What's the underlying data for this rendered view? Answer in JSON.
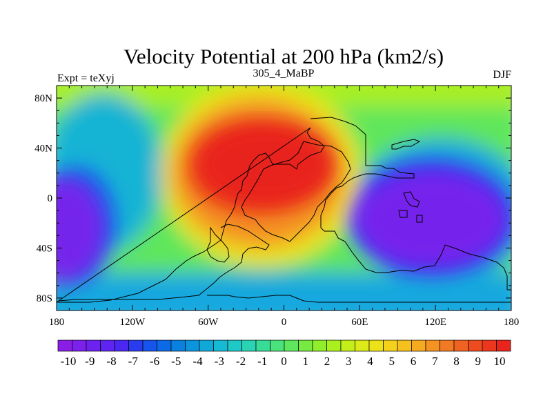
{
  "chart_data": {
    "type": "heatmap",
    "title": "Velocity Potential at 200 hPa (km2/s)",
    "left_label": "Expt = teXyj",
    "center_label": "305_4_MaBP",
    "right_label": "DJF",
    "xlim": [
      -180,
      180
    ],
    "ylim": [
      -90,
      90
    ],
    "x_ticks": [
      {
        "value": -180,
        "label": "180"
      },
      {
        "value": -120,
        "label": "120W"
      },
      {
        "value": -60,
        "label": "60W"
      },
      {
        "value": 0,
        "label": "0"
      },
      {
        "value": 60,
        "label": "60E"
      },
      {
        "value": 120,
        "label": "120E"
      },
      {
        "value": 180,
        "label": "180"
      }
    ],
    "y_ticks": [
      {
        "value": 80,
        "label": "80N"
      },
      {
        "value": 40,
        "label": "40N"
      },
      {
        "value": 0,
        "label": "0"
      },
      {
        "value": -40,
        "label": "40S"
      },
      {
        "value": -80,
        "label": "80S"
      }
    ],
    "colorbar": {
      "labels": [
        "-10",
        "-9",
        "-8",
        "-7",
        "-6",
        "-5",
        "-4",
        "-3",
        "-2",
        "-1",
        "0",
        "1",
        "2",
        "3",
        "4",
        "5",
        "6",
        "7",
        "8",
        "9",
        "10"
      ],
      "colors": [
        "#8a1ee6",
        "#7c20ec",
        "#6d22f0",
        "#5e24f2",
        "#4b28f2",
        "#2a3cf0",
        "#1654ec",
        "#0d6ae6",
        "#0a80e0",
        "#0c94dc",
        "#10a8d8",
        "#16bad2",
        "#1ec8c6",
        "#2ad4b2",
        "#38dc96",
        "#4ae27a",
        "#5ee65c",
        "#76ea40",
        "#90ee2a",
        "#aaf01e",
        "#c4ee1a",
        "#dcea1a",
        "#ece21a",
        "#f4d21c",
        "#f6c01e",
        "#f6aa20",
        "#f49222",
        "#f27a22",
        "#f06222",
        "#ee4c20",
        "#ec361e",
        "#e8241c"
      ]
    },
    "regions": [
      {
        "name": "high-centre",
        "lon": -20,
        "lat": 25,
        "value": 10
      },
      {
        "name": "low-west",
        "lon": -175,
        "lat": -25,
        "value": -9
      },
      {
        "name": "low-east",
        "lon": 110,
        "lat": -5,
        "value": -9
      }
    ]
  }
}
